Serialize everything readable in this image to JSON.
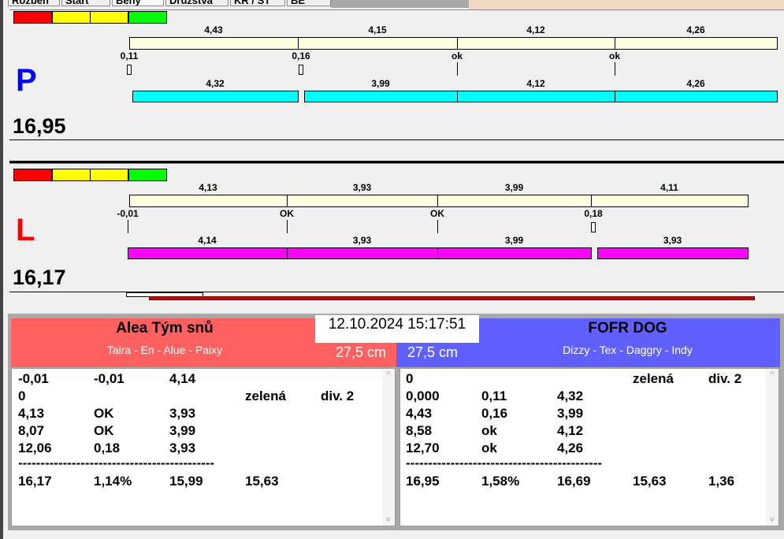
{
  "tabs": [
    "Rozběh",
    "Start",
    "Běhy",
    "Družstva",
    "KR / ST",
    "BE"
  ],
  "colors": {
    "red": "#ff0000",
    "yellow": "#ffff00",
    "green": "#00ff00",
    "cream": "#ffffe0",
    "cyan": "#00ffff",
    "magenta": "#ff00ff",
    "left_team": "#ff6060",
    "right_team": "#6060ff"
  },
  "lanes": [
    {
      "letter": "P",
      "letter_color": "#0000ff",
      "total": "16,95",
      "bar_color": "#00ffff",
      "top_labels": [
        "4,43",
        "4,15",
        "4,12",
        "4,26"
      ],
      "exchange_labels": [
        "0,11",
        "0,16",
        "ok",
        "ok"
      ],
      "bottom_labels": [
        "4,32",
        "3,99",
        "4,12",
        "4,26"
      ]
    },
    {
      "letter": "L",
      "letter_color": "#ff0000",
      "total": "16,17",
      "bar_color": "#ff00ff",
      "top_labels": [
        "4,13",
        "3,93",
        "3,99",
        "4,11"
      ],
      "exchange_labels": [
        "-0,01",
        "OK",
        "OK",
        "0,18"
      ],
      "bottom_labels": [
        "4,14",
        "3,93",
        "3,99",
        "3,93"
      ]
    }
  ],
  "datetime": "12.10.2024 15:17:51",
  "left_team": {
    "name": "Alea Tým snů",
    "dogs": "Taira - En - Alue - Paixy",
    "height": "27,5 cm",
    "rows": [
      [
        "-0,01",
        "-0,01",
        "4,14",
        "",
        ""
      ],
      [
        "0",
        "",
        "",
        "zelená",
        "div. 2"
      ],
      [
        "4,13",
        "OK",
        "3,93",
        "",
        ""
      ],
      [
        "8,07",
        "OK",
        "3,99",
        "",
        ""
      ],
      [
        "12,06",
        "0,18",
        "3,93",
        "",
        ""
      ]
    ],
    "separator": "--------------------------------------------",
    "summary": [
      "16,17",
      "1,14%",
      "15,99",
      "15,63",
      ""
    ]
  },
  "right_team": {
    "name": "FOFR DOG",
    "dogs": "Dizzy - Tex - Daggry - Indy",
    "height": "27,5 cm",
    "rows": [
      [
        "0",
        "",
        "",
        "zelená",
        "div. 2"
      ],
      [
        "0,000",
        "0,11",
        "4,32",
        "",
        ""
      ],
      [
        "4,43",
        "0,16",
        "3,99",
        "",
        ""
      ],
      [
        "8,58",
        "ok",
        "4,12",
        "",
        ""
      ],
      [
        "12,70",
        "ok",
        "4,26",
        "",
        ""
      ]
    ],
    "separator": "--------------------------------------------",
    "summary": [
      "16,95",
      "1,58%",
      "16,69",
      "15,63",
      "1,36"
    ]
  }
}
